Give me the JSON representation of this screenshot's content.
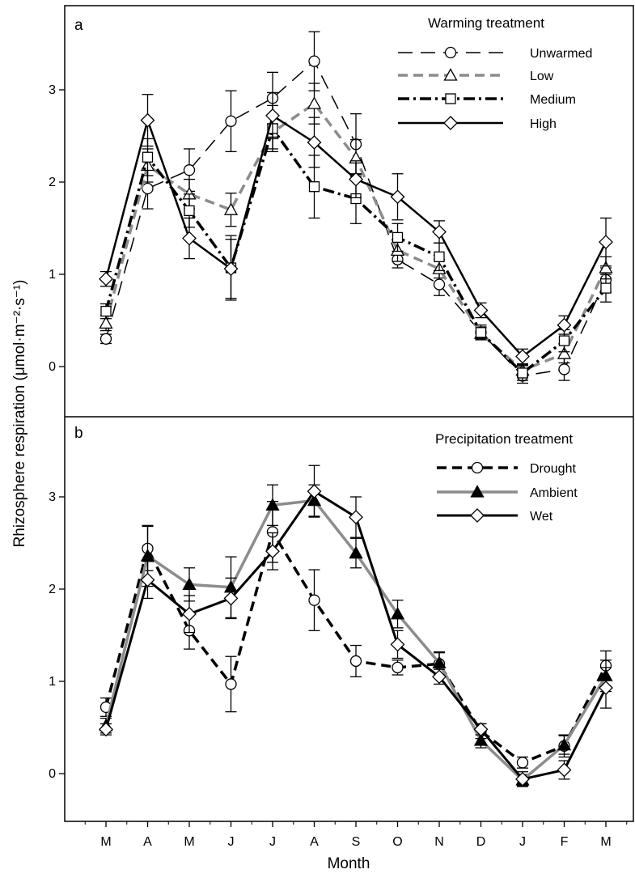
{
  "figure": {
    "ylabel": "Rhizosphere respiration (μmol·m⁻²·s⁻¹)",
    "xlabel": "Month",
    "categories": [
      "M",
      "A",
      "M",
      "J",
      "J",
      "A",
      "S",
      "O",
      "N",
      "D",
      "J",
      "F",
      "M"
    ]
  },
  "chart_data": [
    {
      "panel": "a",
      "type": "line",
      "legend_title": "Warming treatment",
      "legend_position": "top-right",
      "ylim": [
        -0.5,
        3.8
      ],
      "yticks": [
        0,
        1,
        2,
        3
      ],
      "categories": [
        "M",
        "A",
        "M",
        "J",
        "J",
        "A",
        "S",
        "O",
        "N",
        "D",
        "J",
        "F",
        "M"
      ],
      "series": [
        {
          "name": "Unwarmed",
          "values": [
            0.3,
            1.93,
            2.13,
            2.66,
            2.91,
            3.31,
            2.41,
            1.16,
            0.89,
            0.37,
            -0.1,
            -0.03,
            0.94
          ],
          "errors": [
            0.05,
            0.22,
            0.23,
            0.33,
            0.28,
            0.32,
            0.33,
            0.09,
            0.12,
            0.06,
            0.08,
            0.12,
            0.13
          ],
          "color": "#000000",
          "style": "long-dash",
          "marker": "circle"
        },
        {
          "name": "Low",
          "values": [
            0.47,
            2.18,
            1.87,
            1.7,
            2.54,
            2.85,
            2.26,
            1.26,
            1.06,
            0.36,
            -0.04,
            0.14,
            1.07
          ],
          "errors": [
            0.08,
            0.18,
            0.16,
            0.18,
            0.18,
            0.22,
            0.2,
            0.12,
            0.1,
            0.06,
            0.06,
            0.1,
            0.12
          ],
          "color": "#8c8c8c",
          "style": "dash",
          "marker": "triangle"
        },
        {
          "name": "Medium",
          "values": [
            0.6,
            2.27,
            1.69,
            1.07,
            2.58,
            1.95,
            1.82,
            1.4,
            1.19,
            0.37,
            -0.07,
            0.28,
            0.85
          ],
          "errors": [
            0.08,
            0.2,
            0.18,
            0.35,
            0.25,
            0.34,
            0.27,
            0.15,
            0.15,
            0.08,
            0.08,
            0.12,
            0.15
          ],
          "color": "#000000",
          "style": "dash-dot",
          "marker": "square"
        },
        {
          "name": "High",
          "values": [
            0.95,
            2.67,
            1.39,
            1.06,
            2.72,
            2.43,
            2.03,
            1.84,
            1.46,
            0.61,
            0.11,
            0.45,
            1.35
          ],
          "errors": [
            0.08,
            0.28,
            0.22,
            0.32,
            0.25,
            0.27,
            0.2,
            0.25,
            0.12,
            0.08,
            0.08,
            0.1,
            0.26
          ],
          "color": "#000000",
          "style": "solid",
          "marker": "diamond"
        }
      ]
    },
    {
      "panel": "b",
      "type": "line",
      "legend_title": "Precipitation treatment",
      "legend_position": "top-right",
      "ylim": [
        -0.5,
        3.8
      ],
      "yticks": [
        0,
        1,
        2,
        3
      ],
      "categories": [
        "M",
        "A",
        "M",
        "J",
        "J",
        "A",
        "S",
        "O",
        "N",
        "D",
        "J",
        "F",
        "M"
      ],
      "series": [
        {
          "name": "Drought",
          "values": [
            0.72,
            2.44,
            1.55,
            0.97,
            2.62,
            1.88,
            1.22,
            1.15,
            1.19,
            0.46,
            0.12,
            0.3,
            1.17
          ],
          "errors": [
            0.1,
            0.24,
            0.2,
            0.3,
            0.33,
            0.33,
            0.17,
            0.08,
            0.12,
            0.08,
            0.06,
            0.12,
            0.16
          ],
          "color": "#000000",
          "style": "dash",
          "marker": "circle"
        },
        {
          "name": "Ambient",
          "values": [
            0.52,
            2.36,
            2.05,
            2.02,
            2.91,
            2.96,
            2.39,
            1.73,
            1.2,
            0.36,
            -0.07,
            0.31,
            1.06
          ],
          "errors": [
            0.08,
            0.33,
            0.18,
            0.33,
            0.22,
            0.17,
            0.16,
            0.15,
            0.12,
            0.08,
            0.06,
            0.1,
            0.17
          ],
          "color": "#8c8c8c",
          "style": "solid",
          "marker": "triangle-filled"
        },
        {
          "name": "Wet",
          "values": [
            0.48,
            2.1,
            1.73,
            1.9,
            2.41,
            3.06,
            2.78,
            1.4,
            1.05,
            0.48,
            -0.06,
            0.04,
            0.93
          ],
          "errors": [
            0.06,
            0.2,
            0.2,
            0.22,
            0.2,
            0.28,
            0.22,
            0.15,
            0.08,
            0.06,
            0.08,
            0.1,
            0.22
          ],
          "color": "#000000",
          "style": "solid-thick",
          "marker": "diamond"
        }
      ]
    }
  ]
}
